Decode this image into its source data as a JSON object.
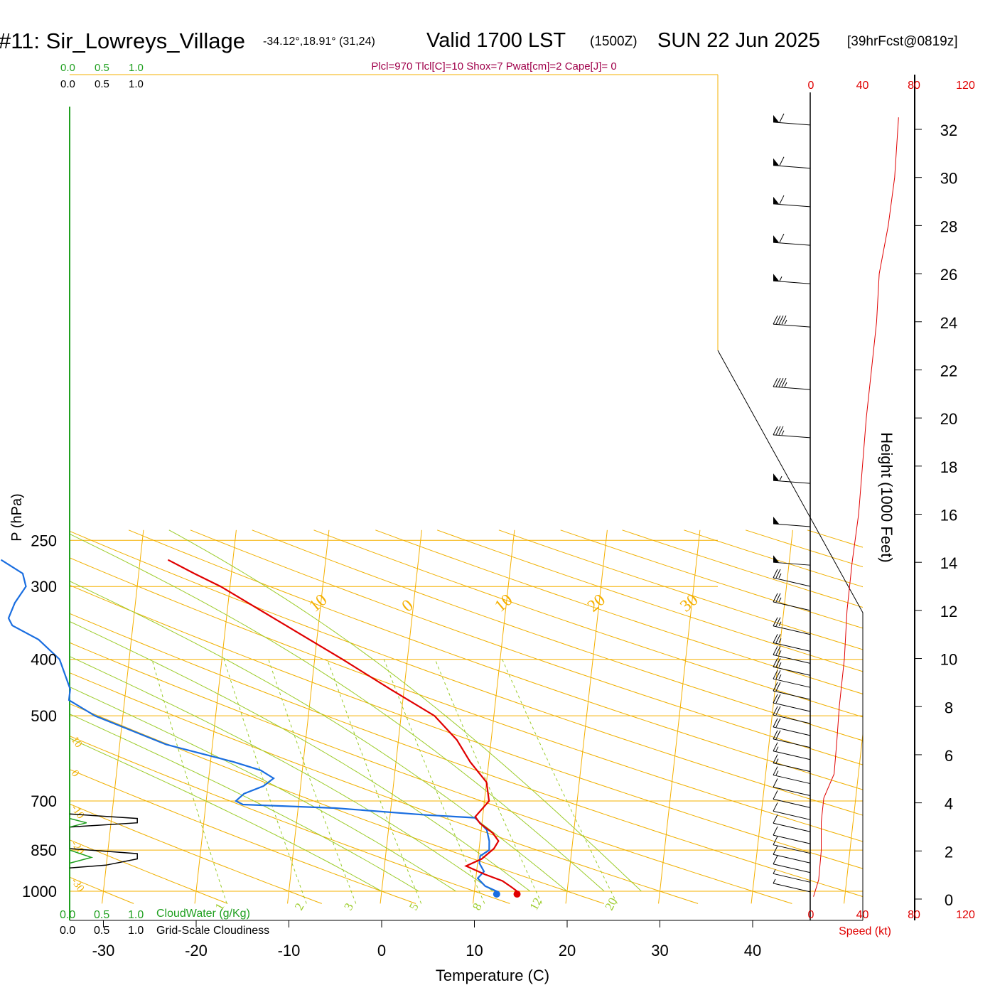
{
  "header": {
    "station": "#11: Sir_Lowreys_Village",
    "coords": "-34.12°,18.91° (31,24)",
    "valid": "Valid 1700 LST",
    "zulu": "(1500Z)",
    "date": "SUN 22 Jun 2025",
    "forecast": "[39hrFcst@0819z]"
  },
  "stats_line": "Plcl=970 Tlcl[C]=10 Shox=7 Pwat[cm]=2 Cape[J]= 0",
  "labels": {
    "ylabel": "P (hPa)",
    "xlabel": "Temperature (C)",
    "height_label": "Height (1000 Feet)",
    "speed_label": "Speed (kt)",
    "cloudwater_label": "CloudWater (g/Kg)",
    "cloudiness_label": "Grid-Scale Cloudiness",
    "cw_scale": [
      "0.0",
      "0.5",
      "1.0"
    ],
    "cl_scale": [
      "0.0",
      "0.5",
      "1.0"
    ]
  },
  "colors": {
    "temperature": "#e00000",
    "dewpoint": "#1a6ee0",
    "isotherm": "#f5b000",
    "dry_adiabat": "#f0b000",
    "moist_adiabat": "#9ccc2a",
    "mixing_ratio": "#9ccc2a",
    "cloudwater": "#20a020",
    "stats": "#a0004a",
    "speed": "#e00000"
  },
  "chart_data": {
    "type": "skew-T log-P sounding",
    "pressure_ticks": [
      250,
      300,
      400,
      500,
      700,
      850,
      1000
    ],
    "temperature_ticks": [
      -30,
      -20,
      -10,
      0,
      10,
      20,
      30,
      40
    ],
    "isotherms_c": [
      -70,
      -60,
      -50,
      -40,
      -30,
      -20,
      -10,
      0,
      10,
      20,
      30,
      40,
      50
    ],
    "isotherm_labels": [
      {
        "text": "10",
        "t": -10
      },
      {
        "text": "0",
        "t": 0
      },
      {
        "text": "10",
        "t": 10
      },
      {
        "text": "20",
        "t": 20
      },
      {
        "text": "30",
        "t": 30
      }
    ],
    "dry_adiabat_labels": [
      {
        "text": "10",
        "theta_c": 10
      },
      {
        "text": "0",
        "theta_c": 0
      },
      {
        "text": "-10",
        "theta_c": -10
      },
      {
        "text": "-20",
        "theta_c": -20
      },
      {
        "text": "-30",
        "theta_c": -30
      }
    ],
    "moist_adiabats_c": [
      0,
      4,
      8,
      12,
      16,
      20,
      24,
      28
    ],
    "mixing_ratio_lines": [
      "1",
      "2",
      "3",
      "5",
      "8",
      "12",
      "20"
    ],
    "temperature_profile": [
      {
        "p": 1000,
        "t": 14.6
      },
      {
        "p": 985,
        "t": 14.0
      },
      {
        "p": 960,
        "t": 12.9
      },
      {
        "p": 935,
        "t": 10.9
      },
      {
        "p": 905,
        "t": 8.8
      },
      {
        "p": 880,
        "t": 10.4
      },
      {
        "p": 845,
        "t": 11.6
      },
      {
        "p": 820,
        "t": 12.0
      },
      {
        "p": 795,
        "t": 11.3
      },
      {
        "p": 765,
        "t": 9.8
      },
      {
        "p": 745,
        "t": 9.2
      },
      {
        "p": 700,
        "t": 10.5
      },
      {
        "p": 650,
        "t": 10.0
      },
      {
        "p": 600,
        "t": 8.0
      },
      {
        "p": 550,
        "t": 6.3
      },
      {
        "p": 500,
        "t": 3.6
      },
      {
        "p": 450,
        "t": -1.5
      },
      {
        "p": 400,
        "t": -7.0
      },
      {
        "p": 350,
        "t": -13.5
      },
      {
        "p": 300,
        "t": -21.0
      },
      {
        "p": 285,
        "t": -24.0
      },
      {
        "p": 270,
        "t": -27.0
      }
    ],
    "dewpoint_profile": [
      {
        "p": 1000,
        "t": 12.4
      },
      {
        "p": 980,
        "t": 11.1
      },
      {
        "p": 950,
        "t": 10.2
      },
      {
        "p": 925,
        "t": 10.8
      },
      {
        "p": 895,
        "t": 10.2
      },
      {
        "p": 870,
        "t": 10.2
      },
      {
        "p": 850,
        "t": 11.1
      },
      {
        "p": 820,
        "t": 11.0
      },
      {
        "p": 785,
        "t": 10.6
      },
      {
        "p": 748,
        "t": 9.2
      },
      {
        "p": 740,
        "t": 4.0
      },
      {
        "p": 720,
        "t": -6.0
      },
      {
        "p": 710,
        "t": -16.0
      },
      {
        "p": 700,
        "t": -16.8
      },
      {
        "p": 680,
        "t": -16.0
      },
      {
        "p": 660,
        "t": -14.0
      },
      {
        "p": 640,
        "t": -13.0
      },
      {
        "p": 620,
        "t": -14.5
      },
      {
        "p": 600,
        "t": -17.5
      },
      {
        "p": 560,
        "t": -25.0
      },
      {
        "p": 500,
        "t": -33.0
      },
      {
        "p": 470,
        "t": -36.0
      },
      {
        "p": 450,
        "t": -36.0
      },
      {
        "p": 400,
        "t": -37.5
      },
      {
        "p": 370,
        "t": -40.0
      },
      {
        "p": 350,
        "t": -43.0
      },
      {
        "p": 340,
        "t": -43.5
      },
      {
        "p": 320,
        "t": -43.0
      },
      {
        "p": 300,
        "t": -42.0
      },
      {
        "p": 285,
        "t": -42.5
      },
      {
        "p": 270,
        "t": -45.0
      }
    ],
    "surface_points": [
      {
        "name": "surface-temperature",
        "p": 1000,
        "t": 14.6
      },
      {
        "name": "surface-dewpoint",
        "p": 1000,
        "t": 12.4
      }
    ],
    "cloudiness_profile": [
      {
        "p": 737,
        "v": 0.0
      },
      {
        "p": 750,
        "v": 0.28
      },
      {
        "p": 763,
        "v": 0.28
      },
      {
        "p": 776,
        "v": 0.0
      },
      {
        "p": 845,
        "v": 0.0
      },
      {
        "p": 862,
        "v": 0.28
      },
      {
        "p": 880,
        "v": 0.28
      },
      {
        "p": 902,
        "v": 0.15
      },
      {
        "p": 912,
        "v": 0.0
      }
    ],
    "cloudwater_profile": [
      {
        "p": 750,
        "v": 0.0
      },
      {
        "p": 763,
        "v": 0.07
      },
      {
        "p": 776,
        "v": 0.0
      },
      {
        "p": 850,
        "v": 0.0
      },
      {
        "p": 875,
        "v": 0.09
      },
      {
        "p": 895,
        "v": 0.0
      }
    ],
    "height_ticks_kft": [
      0,
      2,
      4,
      6,
      8,
      10,
      12,
      14,
      16,
      18,
      20,
      22,
      24,
      26,
      28,
      30,
      32
    ],
    "speed_ticks_kt": [
      0,
      40,
      80,
      120
    ],
    "wind_speed_profile": [
      {
        "h": 0.1,
        "kt": 2
      },
      {
        "h": 0.8,
        "kt": 6
      },
      {
        "h": 2.0,
        "kt": 8
      },
      {
        "h": 3.2,
        "kt": 8
      },
      {
        "h": 4.2,
        "kt": 10
      },
      {
        "h": 5.2,
        "kt": 18
      },
      {
        "h": 6.5,
        "kt": 20
      },
      {
        "h": 8.0,
        "kt": 22
      },
      {
        "h": 10.0,
        "kt": 26
      },
      {
        "h": 12.0,
        "kt": 28
      },
      {
        "h": 14.0,
        "kt": 32
      },
      {
        "h": 16.0,
        "kt": 37
      },
      {
        "h": 18.0,
        "kt": 40
      },
      {
        "h": 20.0,
        "kt": 43
      },
      {
        "h": 22.0,
        "kt": 47
      },
      {
        "h": 24.0,
        "kt": 51
      },
      {
        "h": 26.0,
        "kt": 53
      },
      {
        "h": 28.0,
        "kt": 60
      },
      {
        "h": 30.0,
        "kt": 65
      },
      {
        "h": 32.5,
        "kt": 68
      }
    ],
    "wind_barbs_kft": [
      {
        "h": 0.3,
        "kt": 5
      },
      {
        "h": 0.7,
        "kt": 5
      },
      {
        "h": 1.1,
        "kt": 10
      },
      {
        "h": 1.5,
        "kt": 10
      },
      {
        "h": 1.9,
        "kt": 10
      },
      {
        "h": 2.3,
        "kt": 10
      },
      {
        "h": 2.8,
        "kt": 10
      },
      {
        "h": 3.3,
        "kt": 10
      },
      {
        "h": 3.8,
        "kt": 10
      },
      {
        "h": 4.3,
        "kt": 10
      },
      {
        "h": 4.8,
        "kt": 15
      },
      {
        "h": 5.3,
        "kt": 15
      },
      {
        "h": 5.8,
        "kt": 15
      },
      {
        "h": 6.3,
        "kt": 20
      },
      {
        "h": 6.8,
        "kt": 20
      },
      {
        "h": 7.3,
        "kt": 20
      },
      {
        "h": 7.8,
        "kt": 20
      },
      {
        "h": 8.3,
        "kt": 20
      },
      {
        "h": 8.8,
        "kt": 25
      },
      {
        "h": 9.3,
        "kt": 25
      },
      {
        "h": 9.8,
        "kt": 25
      },
      {
        "h": 10.3,
        "kt": 25
      },
      {
        "h": 11.0,
        "kt": 25
      },
      {
        "h": 12.0,
        "kt": 25
      },
      {
        "h": 13.0,
        "kt": 25
      },
      {
        "h": 14.0,
        "kt": 50
      },
      {
        "h": 15.6,
        "kt": 50
      },
      {
        "h": 17.4,
        "kt": 55
      },
      {
        "h": 19.3,
        "kt": 35
      },
      {
        "h": 21.3,
        "kt": 45
      },
      {
        "h": 23.9,
        "kt": 45
      },
      {
        "h": 25.7,
        "kt": 55
      },
      {
        "h": 27.3,
        "kt": 60
      },
      {
        "h": 28.9,
        "kt": 60
      },
      {
        "h": 30.5,
        "kt": 60
      },
      {
        "h": 32.3,
        "kt": 60
      }
    ]
  }
}
